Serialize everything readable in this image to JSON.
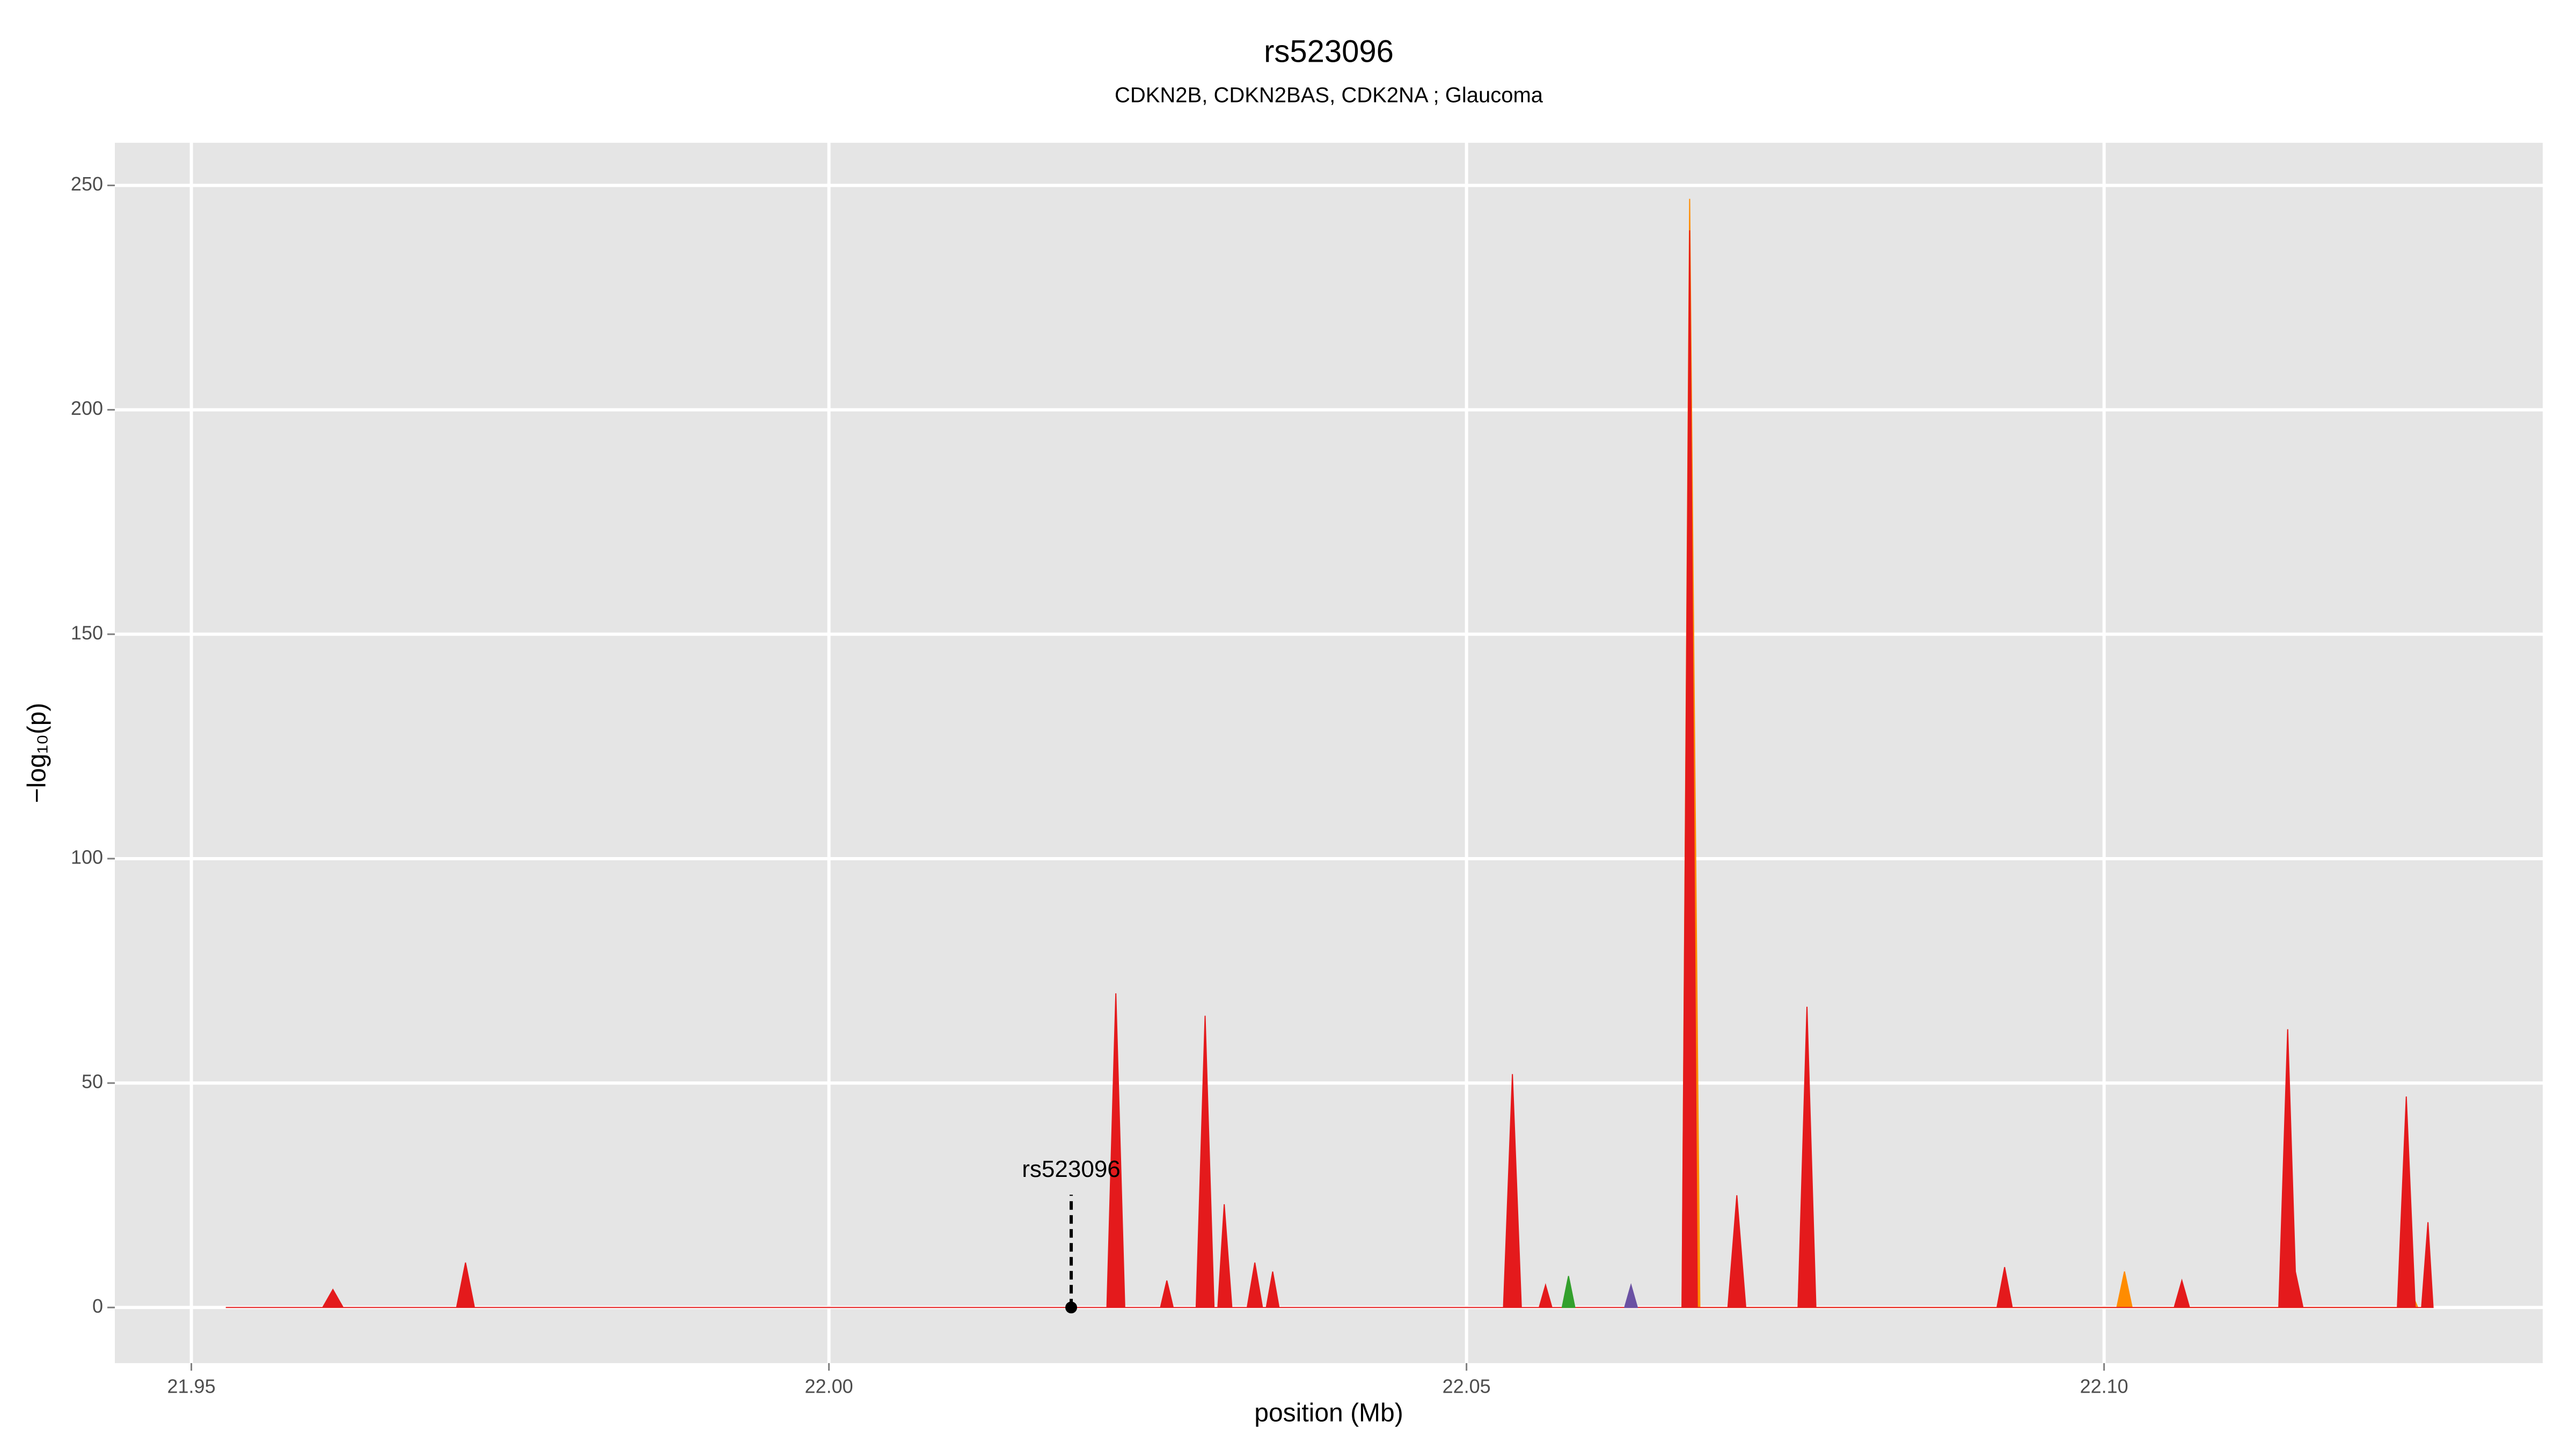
{
  "chart_data": {
    "type": "area",
    "title": "rs523096",
    "subtitle": "CDKN2B, CDKN2BAS, CDK2NA ; Glaucoma",
    "x_label": "position (Mb)",
    "y_label": "−log₁₀(p)",
    "xlim": [
      21.944,
      22.1344
    ],
    "ylim": [
      -12.4,
      259.5
    ],
    "xticks": [
      {
        "value": 21.95,
        "label": "21.95"
      },
      {
        "value": 22.0,
        "label": "22.00"
      },
      {
        "value": 22.05,
        "label": "22.05"
      },
      {
        "value": 22.1,
        "label": "22.10"
      }
    ],
    "yticks": [
      0,
      50,
      100,
      150,
      200,
      250
    ],
    "grid": true,
    "annotation": {
      "text": "rs523096",
      "x": 22.019,
      "y": 0
    },
    "series": [
      {
        "color": "#ff8c00",
        "x": [
          22.0669,
          22.0675,
          22.0683,
          22.076,
          22.0766,
          22.0772,
          22.101,
          22.1016,
          22.1022,
          22.1232,
          22.124,
          22.1246
        ],
        "values": [
          0,
          247,
          0,
          0,
          50,
          0,
          0,
          8,
          0,
          0,
          4,
          0
        ]
      },
      {
        "color": "#e41a1c",
        "x": [
          21.9527,
          21.9603,
          21.9611,
          21.9619,
          21.9708,
          21.9715,
          21.9722,
          22.0218,
          22.0225,
          22.0232,
          22.026,
          22.0265,
          22.027,
          22.0288,
          22.0295,
          22.0302,
          22.0305,
          22.031,
          22.0316,
          22.0328,
          22.0334,
          22.034,
          22.0343,
          22.0348,
          22.0353,
          22.0529,
          22.0536,
          22.0543,
          22.0557,
          22.0562,
          22.0567,
          22.0669,
          22.0675,
          22.0681,
          22.0705,
          22.0712,
          22.0719,
          22.076,
          22.0767,
          22.0774,
          22.0916,
          22.0922,
          22.0928,
          22.1055,
          22.1061,
          22.1067,
          22.1137,
          22.1144,
          22.115,
          22.1156,
          22.123,
          22.1237,
          22.1244,
          22.1249,
          22.1254,
          22.1258
        ],
        "values": [
          0,
          0,
          4,
          0,
          0,
          10,
          0,
          0,
          70,
          0,
          0,
          6,
          0,
          0,
          65,
          0,
          0,
          23,
          0,
          0,
          10,
          0,
          0,
          8,
          0,
          0,
          52,
          0,
          0,
          5,
          0,
          0,
          240,
          0,
          0,
          25,
          0,
          0,
          67,
          0,
          0,
          9,
          0,
          0,
          6,
          0,
          0,
          62,
          8,
          0,
          0,
          47,
          0,
          0,
          19,
          0
        ]
      },
      {
        "color": "#33a02c",
        "x": [
          22.0575,
          22.058,
          22.0585
        ],
        "values": [
          0,
          7,
          0
        ]
      },
      {
        "color": "#6a51a3",
        "x": [
          22.0624,
          22.0629,
          22.0634
        ],
        "values": [
          0,
          5,
          0
        ]
      }
    ]
  }
}
